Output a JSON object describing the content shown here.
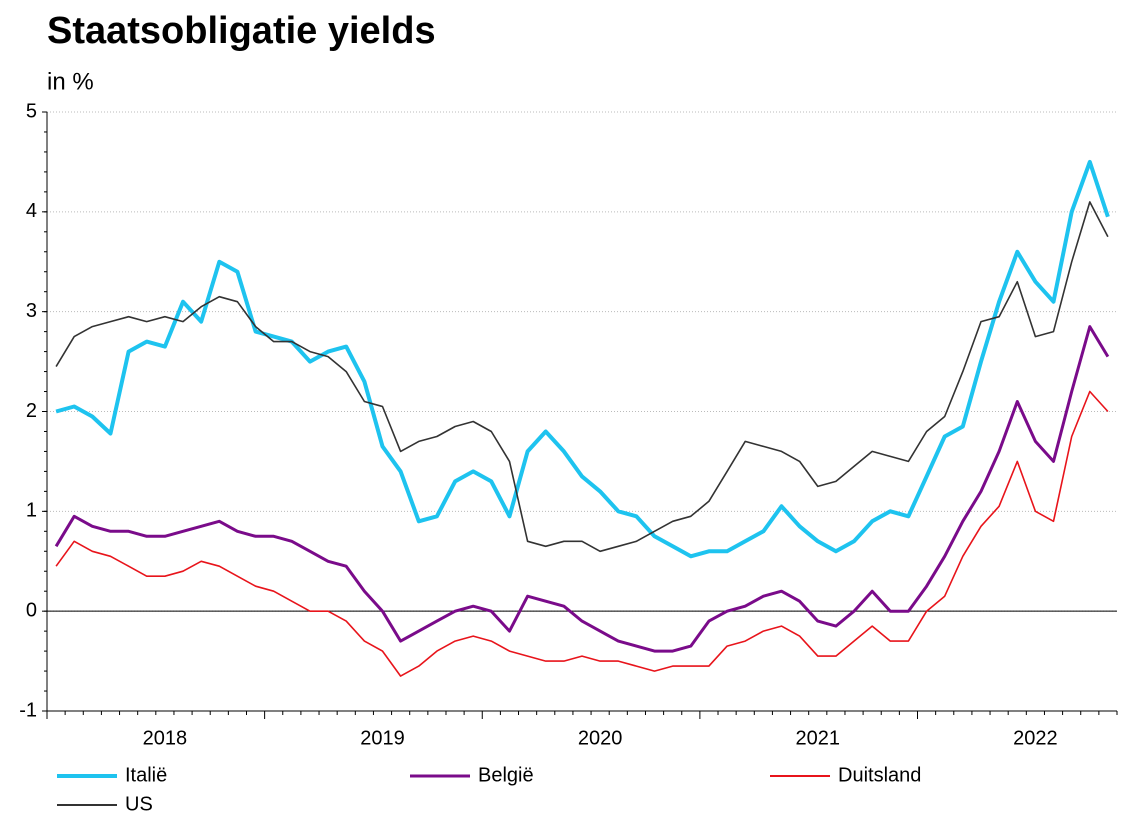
{
  "chart_data": {
    "type": "line",
    "title": "Staatsobligatie yields",
    "subtitle": "in %",
    "categories": [
      null,
      null,
      null,
      null,
      null,
      null,
      "2018",
      null,
      null,
      null,
      null,
      null,
      null,
      null,
      null,
      null,
      null,
      null,
      "2019",
      null,
      null,
      null,
      null,
      null,
      null,
      null,
      null,
      null,
      null,
      null,
      "2020",
      null,
      null,
      null,
      null,
      null,
      null,
      null,
      null,
      null,
      null,
      null,
      "2021",
      null,
      null,
      null,
      null,
      null,
      null,
      null,
      null,
      null,
      null,
      null,
      "2022",
      null,
      null,
      null,
      null
    ],
    "series": [
      {
        "name": "Italië",
        "color": "#1ec3ef",
        "width": 4,
        "values": [
          2.0,
          2.05,
          1.95,
          1.78,
          2.6,
          2.7,
          2.65,
          3.1,
          2.9,
          3.5,
          3.4,
          2.8,
          2.75,
          2.7,
          2.5,
          2.6,
          2.65,
          2.3,
          1.65,
          1.4,
          0.9,
          0.95,
          1.3,
          1.4,
          1.3,
          0.95,
          1.6,
          1.8,
          1.6,
          1.35,
          1.2,
          1.0,
          0.95,
          0.75,
          0.65,
          0.55,
          0.6,
          0.6,
          0.7,
          0.8,
          1.05,
          0.85,
          0.7,
          0.6,
          0.7,
          0.9,
          1.0,
          0.95,
          1.35,
          1.75,
          1.85,
          2.5,
          3.1,
          3.6,
          3.3,
          3.1,
          4.0,
          4.5,
          3.95
        ]
      },
      {
        "name": "België",
        "color": "#7a0b8a",
        "width": 3,
        "values": [
          0.65,
          0.95,
          0.85,
          0.8,
          0.8,
          0.75,
          0.75,
          0.8,
          0.85,
          0.9,
          0.8,
          0.75,
          0.75,
          0.7,
          0.6,
          0.5,
          0.45,
          0.2,
          0.0,
          -0.3,
          -0.2,
          -0.1,
          0.0,
          0.05,
          0.0,
          -0.2,
          0.15,
          0.1,
          0.05,
          -0.1,
          -0.2,
          -0.3,
          -0.35,
          -0.4,
          -0.4,
          -0.35,
          -0.1,
          0.0,
          0.05,
          0.15,
          0.2,
          0.1,
          -0.1,
          -0.15,
          0.0,
          0.2,
          0.0,
          0.0,
          0.25,
          0.55,
          0.9,
          1.2,
          1.6,
          2.1,
          1.7,
          1.5,
          2.2,
          2.85,
          2.55
        ]
      },
      {
        "name": "Duitsland",
        "color": "#e8141b",
        "width": 1.6,
        "values": [
          0.45,
          0.7,
          0.6,
          0.55,
          0.45,
          0.35,
          0.35,
          0.4,
          0.5,
          0.45,
          0.35,
          0.25,
          0.2,
          0.1,
          0.0,
          0.0,
          -0.1,
          -0.3,
          -0.4,
          -0.65,
          -0.55,
          -0.4,
          -0.3,
          -0.25,
          -0.3,
          -0.4,
          -0.45,
          -0.5,
          -0.5,
          -0.45,
          -0.5,
          -0.5,
          -0.55,
          -0.6,
          -0.55,
          -0.55,
          -0.55,
          -0.35,
          -0.3,
          -0.2,
          -0.15,
          -0.25,
          -0.45,
          -0.45,
          -0.3,
          -0.15,
          -0.3,
          -0.3,
          0.0,
          0.15,
          0.55,
          0.85,
          1.05,
          1.5,
          1.0,
          0.9,
          1.75,
          2.2,
          2.0
        ]
      },
      {
        "name": "US",
        "color": "#333333",
        "width": 1.6,
        "values": [
          2.45,
          2.75,
          2.85,
          2.9,
          2.95,
          2.9,
          2.95,
          2.9,
          3.05,
          3.15,
          3.1,
          2.85,
          2.7,
          2.7,
          2.6,
          2.55,
          2.4,
          2.1,
          2.05,
          1.6,
          1.7,
          1.75,
          1.85,
          1.9,
          1.8,
          1.5,
          0.7,
          0.65,
          0.7,
          0.7,
          0.6,
          0.65,
          0.7,
          0.8,
          0.9,
          0.95,
          1.1,
          1.4,
          1.7,
          1.65,
          1.6,
          1.5,
          1.25,
          1.3,
          1.45,
          1.6,
          1.55,
          1.5,
          1.8,
          1.95,
          2.4,
          2.9,
          2.95,
          3.3,
          2.75,
          2.8,
          3.5,
          4.1,
          3.75
        ]
      }
    ],
    "ylim": [
      -1,
      5
    ],
    "yticks": [
      -1,
      0,
      1,
      2,
      3,
      4,
      5
    ],
    "grid": true,
    "legend": "bottom"
  }
}
